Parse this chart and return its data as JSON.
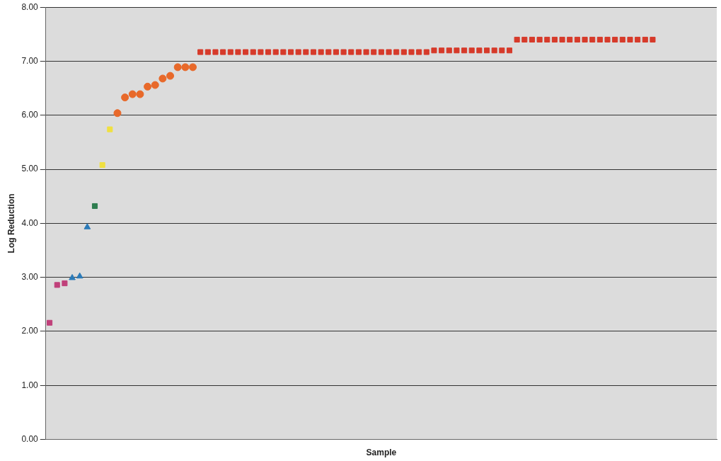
{
  "chart_data": {
    "type": "scatter",
    "xlabel": "Sample",
    "ylabel": "Log Reduction",
    "ylim": [
      0,
      8
    ],
    "tick_labels": "y",
    "categories": [
      null,
      null,
      null,
      null,
      null,
      null,
      null,
      null,
      null,
      null,
      null,
      null,
      null,
      null,
      null,
      null,
      null,
      null,
      null,
      null,
      null,
      null,
      null,
      null,
      null,
      null,
      null,
      null,
      null,
      null,
      null,
      null,
      null,
      null,
      null,
      null,
      null,
      null,
      null,
      null,
      null,
      null,
      null,
      null,
      null,
      null,
      null,
      null,
      null,
      null,
      null,
      null,
      null,
      null,
      null,
      null,
      null,
      null,
      null,
      null,
      null,
      null,
      null,
      null,
      null,
      null,
      null,
      null,
      null,
      null,
      null,
      null,
      null,
      null,
      null,
      null,
      null,
      null,
      null,
      null,
      null,
      null,
      null,
      null,
      null,
      null,
      null,
      null,
      null
    ],
    "yticks": [
      {
        "value": 0,
        "label": "0.00"
      },
      {
        "value": 1,
        "label": "1.00"
      },
      {
        "value": 2,
        "label": "2.00"
      },
      {
        "value": 3,
        "label": "3.00"
      },
      {
        "value": 4,
        "label": "4.00"
      },
      {
        "value": 5,
        "label": "5.00"
      },
      {
        "value": 6,
        "label": "6.00"
      },
      {
        "value": 7,
        "label": "7.00"
      },
      {
        "value": 8,
        "label": "8.00"
      }
    ],
    "grid": "y",
    "series": [
      {
        "color": "#c0407a",
        "marker": "square",
        "values": [
          2.16,
          2.86,
          2.89,
          null,
          null,
          null,
          null,
          null,
          null,
          null,
          null,
          null,
          null,
          null,
          null,
          null,
          null,
          null,
          null,
          null,
          null,
          null,
          null,
          null,
          null,
          null,
          null,
          null,
          null,
          null,
          null,
          null,
          null,
          null,
          null,
          null,
          null,
          null,
          null,
          null,
          null,
          null,
          null,
          null,
          null,
          null,
          null,
          null,
          null,
          null,
          null,
          null,
          null,
          null,
          null,
          null,
          null,
          null,
          null,
          null,
          null,
          null,
          null,
          null,
          null,
          null,
          null,
          null,
          null,
          null,
          null,
          null,
          null,
          null,
          null,
          null,
          null,
          null,
          null,
          null,
          null,
          null,
          null,
          null,
          null,
          null,
          null,
          null,
          null
        ]
      },
      {
        "color": "#2a7ab8",
        "marker": "triangle",
        "values": [
          null,
          null,
          null,
          2.99,
          3.02,
          3.93,
          null,
          null,
          null,
          null,
          null,
          null,
          null,
          null,
          null,
          null,
          null,
          null,
          null,
          null,
          null,
          null,
          null,
          null,
          null,
          null,
          null,
          null,
          null,
          null,
          null,
          null,
          null,
          null,
          null,
          null,
          null,
          null,
          null,
          null,
          null,
          null,
          null,
          null,
          null,
          null,
          null,
          null,
          null,
          null,
          null,
          null,
          null,
          null,
          null,
          null,
          null,
          null,
          null,
          null,
          null,
          null,
          null,
          null,
          null,
          null,
          null,
          null,
          null,
          null,
          null,
          null,
          null,
          null,
          null,
          null,
          null,
          null,
          null,
          null,
          null,
          null,
          null,
          null,
          null,
          null,
          null,
          null,
          null
        ]
      },
      {
        "color": "#2e7d4f",
        "marker": "square",
        "values": [
          null,
          null,
          null,
          null,
          null,
          null,
          4.32,
          null,
          null,
          null,
          null,
          null,
          null,
          null,
          null,
          null,
          null,
          null,
          null,
          null,
          null,
          null,
          null,
          null,
          null,
          null,
          null,
          null,
          null,
          null,
          null,
          null,
          null,
          null,
          null,
          null,
          null,
          null,
          null,
          null,
          null,
          null,
          null,
          null,
          null,
          null,
          null,
          null,
          null,
          null,
          null,
          null,
          null,
          null,
          null,
          null,
          null,
          null,
          null,
          null,
          null,
          null,
          null,
          null,
          null,
          null,
          null,
          null,
          null,
          null,
          null,
          null,
          null,
          null,
          null,
          null,
          null,
          null,
          null,
          null,
          null,
          null,
          null,
          null,
          null,
          null,
          null,
          null,
          null
        ]
      },
      {
        "color": "#f0e040",
        "marker": "square",
        "values": [
          null,
          null,
          null,
          null,
          null,
          null,
          null,
          5.08,
          5.74,
          null,
          null,
          null,
          null,
          null,
          null,
          null,
          null,
          null,
          null,
          null,
          null,
          null,
          null,
          null,
          null,
          null,
          null,
          null,
          null,
          null,
          null,
          null,
          null,
          null,
          null,
          null,
          null,
          null,
          null,
          null,
          null,
          null,
          null,
          null,
          null,
          null,
          null,
          null,
          null,
          null,
          null,
          null,
          null,
          null,
          null,
          null,
          null,
          null,
          null,
          null,
          null,
          null,
          null,
          null,
          null,
          null,
          null,
          null,
          null,
          null,
          null,
          null,
          null,
          null,
          null,
          null,
          null,
          null,
          null,
          null,
          null,
          null,
          null,
          null,
          null,
          null,
          null,
          null,
          null
        ]
      },
      {
        "color": "#e8692a",
        "marker": "circle",
        "values": [
          null,
          null,
          null,
          null,
          null,
          null,
          null,
          null,
          null,
          6.04,
          6.33,
          6.39,
          6.39,
          6.53,
          6.56,
          6.68,
          6.73,
          6.89,
          6.89,
          6.89,
          null,
          null,
          null,
          null,
          null,
          null,
          null,
          null,
          null,
          null,
          null,
          null,
          null,
          null,
          null,
          null,
          null,
          null,
          null,
          null,
          null,
          null,
          null,
          null,
          null,
          null,
          null,
          null,
          null,
          null,
          null,
          null,
          null,
          null,
          null,
          null,
          null,
          null,
          null,
          null,
          null,
          null,
          null,
          null,
          null,
          null,
          null,
          null,
          null,
          null,
          null,
          null,
          null,
          null,
          null,
          null,
          null,
          null,
          null,
          null,
          null,
          null,
          null,
          null,
          null,
          null,
          null,
          null,
          null
        ]
      },
      {
        "color": "#d63a2a",
        "marker": "square",
        "values": [
          null,
          null,
          null,
          null,
          null,
          null,
          null,
          null,
          null,
          null,
          null,
          null,
          null,
          null,
          null,
          null,
          null,
          null,
          null,
          null,
          7.17,
          7.17,
          7.17,
          7.17,
          7.17,
          7.17,
          7.17,
          7.17,
          7.17,
          7.17,
          7.17,
          7.17,
          7.17,
          7.17,
          7.17,
          7.17,
          7.17,
          7.17,
          7.17,
          7.17,
          7.17,
          7.17,
          7.17,
          7.17,
          7.17,
          7.17,
          7.17,
          7.17,
          7.17,
          7.17,
          7.17,
          7.2,
          7.2,
          7.2,
          7.2,
          7.2,
          7.2,
          7.2,
          7.2,
          7.2,
          7.2,
          7.2,
          7.4,
          7.4,
          7.4,
          7.4,
          7.4,
          7.4,
          7.4,
          7.4,
          7.4,
          7.4,
          7.4,
          7.4,
          7.4,
          7.4,
          7.4,
          7.4,
          7.4,
          7.4,
          7.4,
          null,
          null,
          null,
          null,
          null,
          null,
          null,
          null
        ]
      }
    ]
  }
}
